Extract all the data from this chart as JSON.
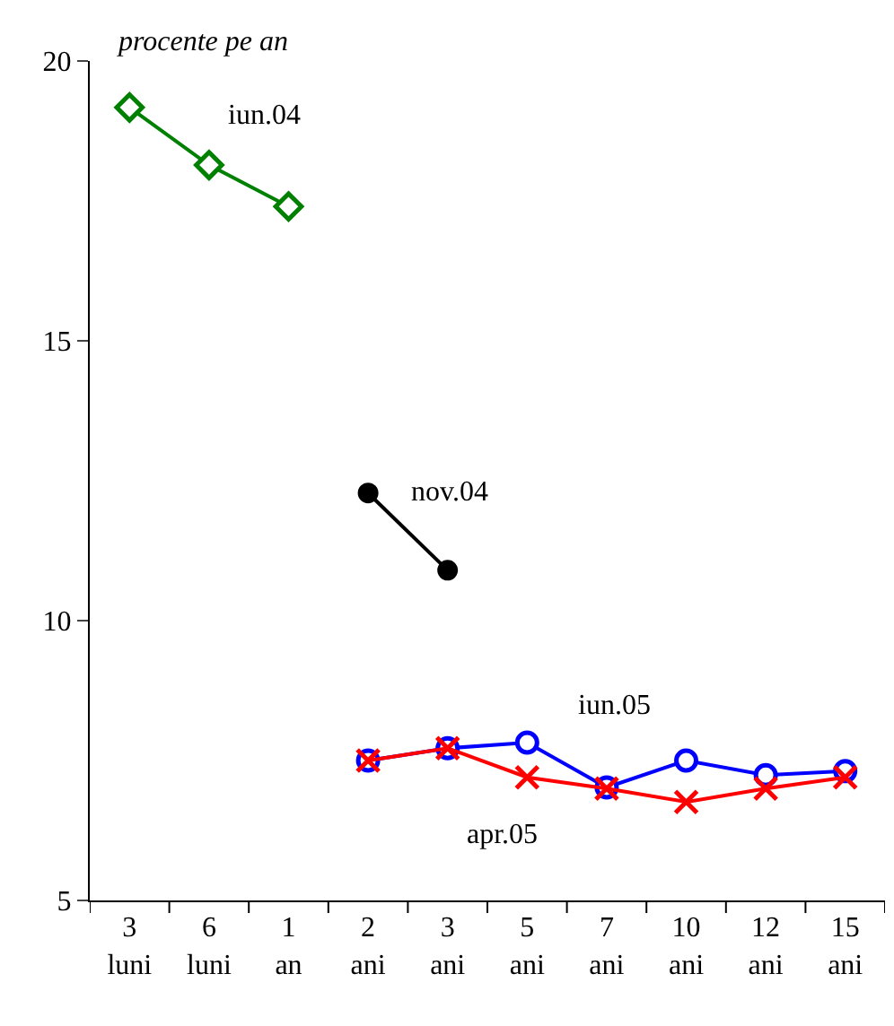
{
  "chart_data": {
    "type": "line",
    "ylabel": "procente pe an",
    "categories": [
      "3 luni",
      "6 luni",
      "1 an",
      "2 ani",
      "3 ani",
      "5 ani",
      "7 ani",
      "10 ani",
      "12 ani",
      "15 ani"
    ],
    "ylim": [
      5,
      20
    ],
    "yticks": [
      5,
      10,
      15,
      20
    ],
    "legend": false,
    "line_style": "solid",
    "series": [
      {
        "name": "iun.04",
        "color": "#008000",
        "marker": "diamond",
        "values": [
          19.17,
          18.14,
          17.4,
          null,
          null,
          null,
          null,
          null,
          null,
          null
        ]
      },
      {
        "name": "nov.04",
        "color": "#000000",
        "marker": "circle",
        "values": [
          null,
          null,
          null,
          12.28,
          10.9,
          null,
          null,
          null,
          null,
          null
        ]
      },
      {
        "name": "iun.05",
        "color": "#0000ff",
        "marker": "circle",
        "values": [
          null,
          null,
          null,
          7.5,
          7.72,
          7.82,
          7.02,
          7.5,
          7.24,
          7.31
        ]
      },
      {
        "name": "apr.05",
        "color": "#ff0000",
        "marker": "cross",
        "values": [
          null,
          null,
          null,
          7.5,
          7.72,
          7.2,
          7.0,
          6.76,
          7.0,
          7.2
        ]
      }
    ]
  }
}
